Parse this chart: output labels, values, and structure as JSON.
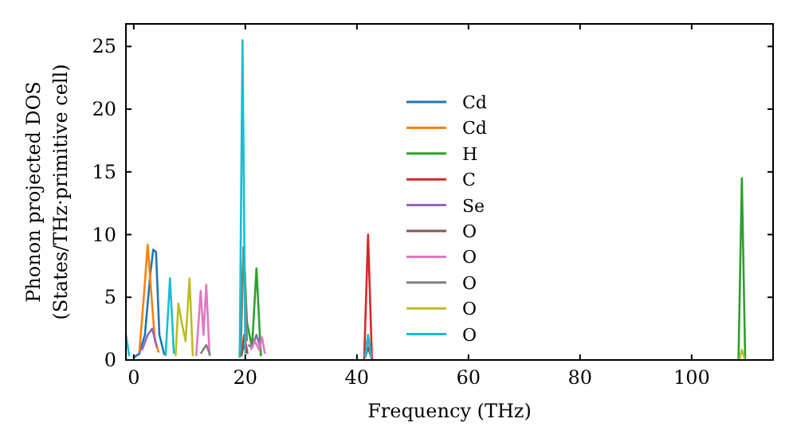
{
  "chart_data": {
    "type": "line",
    "xlabel": "Frequency (THz)",
    "ylabel": "Phonon projected DOS\n(States/THz·primitive cell)",
    "xlim": [
      -1.4,
      114.6
    ],
    "ylim": [
      0,
      26.8
    ],
    "xticks": [
      0,
      20,
      40,
      60,
      80,
      100
    ],
    "yticks": [
      0,
      5,
      10,
      15,
      20,
      25
    ],
    "legend": "center",
    "grid": false,
    "series": [
      {
        "name": "Cd",
        "color": "#1f77b4",
        "x": [
          0,
          1,
          2,
          3,
          3.5,
          4,
          4.6,
          5.5
        ],
        "values": [
          0.2,
          0.5,
          2,
          7,
          8.8,
          8.6,
          2,
          0.4
        ]
      },
      {
        "name": "Cd",
        "color": "#ff7f0e",
        "x": [
          1,
          1.8,
          2.5,
          3.2,
          3.8,
          4.5
        ],
        "values": [
          0.6,
          5,
          9.2,
          5,
          1.5,
          0.6
        ]
      },
      {
        "name": "H",
        "color": "#2ca02c",
        "x": [
          19,
          19.7,
          20.3,
          21.2,
          22,
          22.8,
          null,
          108.4,
          109,
          109.6
        ],
        "values": [
          0.2,
          9,
          3,
          1,
          7.3,
          0.3,
          null,
          0,
          14.5,
          0
        ]
      },
      {
        "name": "C",
        "color": "#d62728",
        "x": [
          19.3,
          19.8,
          20.4,
          null,
          41.3,
          42,
          42.7
        ],
        "values": [
          0.3,
          2,
          0.5,
          null,
          0,
          10,
          0
        ]
      },
      {
        "name": "Se",
        "color": "#9467bd",
        "x": [
          1.5,
          2.5,
          3.3,
          4.2,
          null,
          20.5,
          21.2,
          22,
          22.7
        ],
        "values": [
          0.8,
          2,
          2.5,
          1,
          null,
          1.2,
          1,
          2,
          1
        ]
      },
      {
        "name": "O",
        "color": "#8c564b",
        "x": [
          19.3,
          19.8,
          20.3,
          null,
          41.5,
          42,
          42.6
        ],
        "values": [
          0.5,
          1.2,
          0.5,
          null,
          0.2,
          1,
          0.2
        ]
      },
      {
        "name": "O",
        "color": "#e377c2",
        "x": [
          11.2,
          12,
          12.5,
          13,
          13.6,
          null,
          21,
          21.7,
          22.5,
          23,
          23.5
        ],
        "values": [
          0.3,
          5.5,
          2,
          6,
          0.3,
          null,
          0.8,
          1.5,
          0.8,
          1.8,
          0.5
        ]
      },
      {
        "name": "O",
        "color": "#7f7f7f",
        "x": [
          12,
          13,
          13.7,
          null,
          19.2,
          19.7,
          20.3,
          null,
          41.4,
          42,
          42.6
        ],
        "values": [
          0.5,
          1.2,
          0.4,
          null,
          1,
          9,
          1.5,
          null,
          0.3,
          1.8,
          0.3
        ]
      },
      {
        "name": "O",
        "color": "#bcbd22",
        "x": [
          7.5,
          8,
          8.6,
          9.3,
          10,
          10.6,
          null,
          108.6,
          109,
          109.5
        ],
        "values": [
          0.3,
          4.5,
          3,
          1.5,
          6.5,
          0.3,
          null,
          0.1,
          0.8,
          0.1
        ]
      },
      {
        "name": "O",
        "color": "#17becf",
        "x": [
          -1.4,
          -0.8,
          null,
          5.7,
          6.5,
          7.2,
          null,
          19,
          19.5,
          20,
          null,
          41.5,
          42,
          42.6
        ],
        "values": [
          2,
          0.3,
          null,
          0.3,
          6.5,
          0.5,
          null,
          0.3,
          25.5,
          0.5,
          null,
          0.2,
          2,
          0.2
        ]
      }
    ]
  }
}
